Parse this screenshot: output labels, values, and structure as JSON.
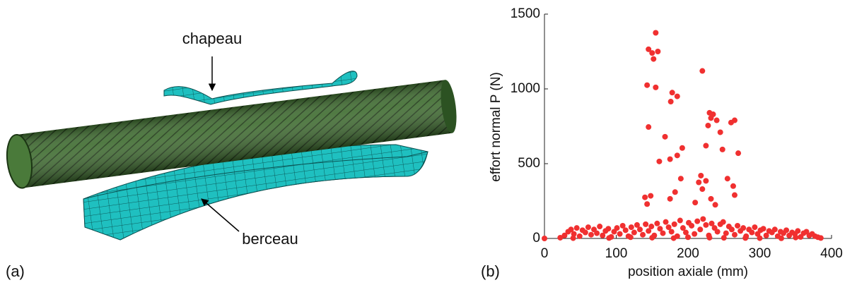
{
  "panel_a": {
    "label": "(a)",
    "annotations": [
      "chapeau",
      "berceau"
    ]
  },
  "chart_data": {
    "type": "scatter",
    "panel_label": "(b)",
    "xlabel": "position axiale (mm)",
    "ylabel": "effort normal P (N)",
    "color": "#f03030",
    "xlim": [
      0,
      400
    ],
    "xticks": [
      0,
      100,
      200,
      300,
      400
    ],
    "ylim": [
      0,
      1500
    ],
    "yticks": [
      0,
      500,
      1000,
      1500
    ],
    "x": [
      0,
      155,
      145,
      150,
      158,
      152,
      143,
      155,
      178,
      185,
      176,
      220,
      230,
      235,
      240,
      265,
      260,
      245,
      228,
      232,
      145,
      168,
      192,
      225,
      248,
      270,
      185,
      175,
      160,
      190,
      218,
      225,
      255,
      263,
      215,
      182,
      220,
      232,
      140,
      148,
      175,
      238,
      143,
      265,
      210,
      22,
      28,
      33,
      37,
      41,
      45,
      49,
      53,
      57,
      61,
      65,
      69,
      73,
      77,
      81,
      85,
      89,
      93,
      97,
      101,
      105,
      109,
      113,
      117,
      121,
      125,
      129,
      133,
      137,
      141,
      145,
      149,
      153,
      157,
      161,
      165,
      169,
      173,
      177,
      181,
      185,
      189,
      193,
      197,
      201,
      205,
      209,
      213,
      217,
      221,
      225,
      229,
      233,
      237,
      241,
      245,
      249,
      253,
      257,
      261,
      265,
      269,
      273,
      277,
      281,
      285,
      289,
      293,
      297,
      301,
      305,
      309,
      313,
      317,
      321,
      325,
      329,
      333,
      337,
      341,
      345,
      349,
      353,
      357,
      361,
      365,
      369,
      373,
      377,
      381,
      385,
      40,
      90,
      150,
      200,
      250,
      300,
      350,
      120,
      180,
      230,
      280,
      330
    ],
    "values": [
      0,
      1375,
      1265,
      1240,
      1250,
      1200,
      1025,
      1010,
      975,
      950,
      915,
      1120,
      840,
      830,
      790,
      790,
      775,
      710,
      755,
      805,
      745,
      680,
      605,
      620,
      595,
      570,
      555,
      530,
      515,
      400,
      420,
      385,
      400,
      350,
      375,
      310,
      330,
      265,
      275,
      285,
      265,
      225,
      230,
      290,
      240,
      5,
      20,
      45,
      60,
      30,
      70,
      15,
      55,
      40,
      75,
      25,
      60,
      35,
      80,
      20,
      50,
      65,
      10,
      45,
      70,
      30,
      85,
      55,
      15,
      75,
      40,
      90,
      60,
      25,
      95,
      50,
      80,
      20,
      100,
      65,
      35,
      110,
      75,
      45,
      95,
      15,
      120,
      70,
      40,
      105,
      85,
      30,
      115,
      60,
      130,
      90,
      20,
      100,
      70,
      45,
      95,
      110,
      35,
      80,
      60,
      25,
      85,
      50,
      70,
      15,
      60,
      40,
      75,
      30,
      55,
      65,
      20,
      50,
      40,
      60,
      15,
      45,
      35,
      55,
      20,
      40,
      30,
      50,
      10,
      35,
      45,
      20,
      30,
      15,
      8,
      3,
      2,
      3,
      5,
      8,
      4,
      2,
      6,
      8,
      2,
      5,
      3,
      1
    ]
  }
}
